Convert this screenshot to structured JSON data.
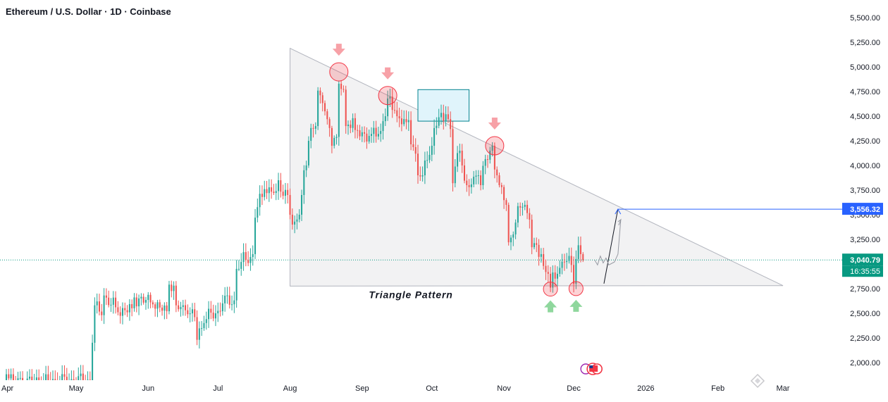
{
  "chart_data": {
    "type": "candlestick",
    "title": "Ethereum / U.S. Dollar · 1D · Coinbase",
    "yaxis_ticks": [
      2000,
      2250,
      2500,
      2750,
      3000,
      3250,
      3500,
      3750,
      4000,
      4250,
      4500,
      4750,
      5000,
      5250,
      5500
    ],
    "yaxis_tick_labels": [
      "2,000.00",
      "2,250.00",
      "2,500.00",
      "2,750.00",
      "3,000.00",
      "3,250.00",
      "3,500.00",
      "3,750.00",
      "4,000.00",
      "4,250.00",
      "4,500.00",
      "4,750.00",
      "5,000.00",
      "5,250.00",
      "5,500.00"
    ],
    "ylim": [
      1820,
      5680
    ],
    "xaxis_ticks": [
      {
        "label": "Apr",
        "date": "2025-04-01"
      },
      {
        "label": "May",
        "date": "2025-05-01"
      },
      {
        "label": "Jun",
        "date": "2025-06-01"
      },
      {
        "label": "Jul",
        "date": "2025-07-01"
      },
      {
        "label": "Aug",
        "date": "2025-08-01"
      },
      {
        "label": "Sep",
        "date": "2025-09-01"
      },
      {
        "label": "Oct",
        "date": "2025-10-01"
      },
      {
        "label": "Nov",
        "date": "2025-11-01"
      },
      {
        "label": "Dec",
        "date": "2025-12-01"
      },
      {
        "label": "2026",
        "date": "2026-01-01"
      },
      {
        "label": "Feb",
        "date": "2026-02-01"
      },
      {
        "label": "Mar",
        "date": "2026-03-01"
      }
    ],
    "last_price": {
      "label": "3,040.79",
      "value": 3040.79,
      "countdown": "16:35:55"
    },
    "target": {
      "label": "3,556.32",
      "value": 3556.32
    },
    "annotations": {
      "pattern_label": "Triangle Pattern",
      "triangle": [
        {
          "date": "2025-08-01",
          "price": 5190
        },
        {
          "date": "2025-08-01",
          "price": 2775
        },
        {
          "date": "2026-03-01",
          "price": 2780
        }
      ],
      "resistance_touches": [
        {
          "date": "2025-08-22",
          "price": 4950
        },
        {
          "date": "2025-09-12",
          "price": 4710
        },
        {
          "date": "2025-10-28",
          "price": 4200
        }
      ],
      "support_touches": [
        {
          "date": "2025-11-21",
          "price": 2745
        },
        {
          "date": "2025-12-02",
          "price": 2750
        }
      ],
      "consolidation_box": {
        "start": "2025-09-25",
        "end": "2025-10-17",
        "high": 4770,
        "low": 4450
      }
    },
    "colors": {
      "up": "#26a69a",
      "down": "#ef5350",
      "target_line": "#2962ff",
      "triangle_fill": "#f2f2f3",
      "triangle_edge": "#b2b5be",
      "box_fill": "#e0f4fb",
      "box_edge": "#00838f",
      "price_label": "#089981"
    },
    "ohlc": [
      [
        "2025-04-01",
        1820,
        1905,
        1790,
        1880
      ],
      [
        "2025-04-04",
        1880,
        1910,
        1760,
        1800
      ],
      [
        "2025-05-08",
        1810,
        2220,
        1800,
        2200
      ],
      [
        "2025-05-09",
        2200,
        2600,
        2180,
        2580
      ],
      [
        "2025-05-13",
        2480,
        2740,
        2440,
        2680
      ],
      [
        "2025-05-19",
        2560,
        2600,
        2450,
        2510
      ],
      [
        "2025-05-26",
        2550,
        2700,
        2520,
        2660
      ],
      [
        "2025-06-03",
        2610,
        2680,
        2560,
        2590
      ],
      [
        "2025-06-10",
        2520,
        2850,
        2500,
        2790
      ],
      [
        "2025-06-13",
        2780,
        2790,
        2520,
        2580
      ],
      [
        "2025-06-18",
        2530,
        2560,
        2460,
        2490
      ],
      [
        "2025-06-22",
        2460,
        2470,
        2120,
        2230
      ],
      [
        "2025-06-26",
        2400,
        2480,
        2380,
        2440
      ],
      [
        "2025-07-03",
        2520,
        2640,
        2500,
        2600
      ],
      [
        "2025-07-09",
        2630,
        2980,
        2610,
        2950
      ],
      [
        "2025-07-11",
        2950,
        3050,
        2930,
        3020
      ],
      [
        "2025-07-14",
        3040,
        3080,
        2990,
        3010
      ],
      [
        "2025-07-17",
        3100,
        3500,
        3090,
        3470
      ],
      [
        "2025-07-21",
        3680,
        3800,
        3600,
        3760
      ],
      [
        "2025-07-27",
        3740,
        3930,
        3730,
        3850
      ],
      [
        "2025-08-01",
        3700,
        3710,
        3450,
        3500
      ],
      [
        "2025-08-03",
        3400,
        3460,
        3350,
        3430
      ],
      [
        "2025-08-06",
        3500,
        3720,
        3480,
        3700
      ],
      [
        "2025-08-09",
        4000,
        4300,
        3990,
        4250
      ],
      [
        "2025-08-13",
        4400,
        4790,
        4380,
        4760
      ],
      [
        "2025-08-17",
        4550,
        4600,
        4420,
        4470
      ],
      [
        "2025-08-19",
        4380,
        4400,
        4180,
        4200
      ],
      [
        "2025-08-20",
        4200,
        4320,
        4120,
        4280
      ],
      [
        "2025-08-22",
        4290,
        4950,
        4280,
        4830
      ],
      [
        "2025-08-25",
        4770,
        4780,
        4360,
        4400
      ],
      [
        "2025-08-29",
        4480,
        4520,
        4300,
        4360
      ],
      [
        "2025-09-05",
        4300,
        4480,
        4280,
        4320
      ],
      [
        "2025-09-10",
        4350,
        4480,
        4330,
        4450
      ],
      [
        "2025-09-12",
        4500,
        4710,
        4480,
        4680
      ],
      [
        "2025-09-16",
        4560,
        4580,
        4420,
        4500
      ],
      [
        "2025-09-21",
        4440,
        4480,
        4390,
        4460
      ],
      [
        "2025-09-25",
        4120,
        4170,
        3830,
        3900
      ],
      [
        "2025-09-28",
        3900,
        4080,
        3890,
        4050
      ],
      [
        "2025-10-02",
        4200,
        4400,
        4180,
        4380
      ],
      [
        "2025-10-08",
        4520,
        4620,
        4440,
        4470
      ],
      [
        "2025-10-10",
        4370,
        4400,
        3460,
        3820
      ],
      [
        "2025-10-14",
        4150,
        4260,
        3980,
        4000
      ],
      [
        "2025-10-17",
        3800,
        3850,
        3720,
        3780
      ],
      [
        "2025-10-22",
        3900,
        3930,
        3780,
        3800
      ],
      [
        "2025-10-27",
        4150,
        4250,
        4100,
        4200
      ],
      [
        "2025-10-30",
        3900,
        3950,
        3780,
        3800
      ],
      [
        "2025-11-03",
        3600,
        3620,
        3200,
        3220
      ],
      [
        "2025-11-06",
        3300,
        3450,
        3280,
        3420
      ],
      [
        "2025-11-10",
        3580,
        3650,
        3520,
        3600
      ],
      [
        "2025-11-13",
        3450,
        3460,
        3150,
        3170
      ],
      [
        "2025-11-18",
        3100,
        3110,
        2950,
        2980
      ],
      [
        "2025-11-21",
        2900,
        2920,
        2620,
        2760
      ],
      [
        "2025-11-25",
        2900,
        2990,
        2880,
        2960
      ],
      [
        "2025-11-28",
        3020,
        3060,
        2990,
        3030
      ],
      [
        "2025-12-01",
        2990,
        3000,
        2720,
        2800
      ],
      [
        "2025-12-03",
        3050,
        3220,
        3040,
        3190
      ],
      [
        "2025-12-05",
        3100,
        3120,
        3020,
        3040
      ]
    ]
  }
}
